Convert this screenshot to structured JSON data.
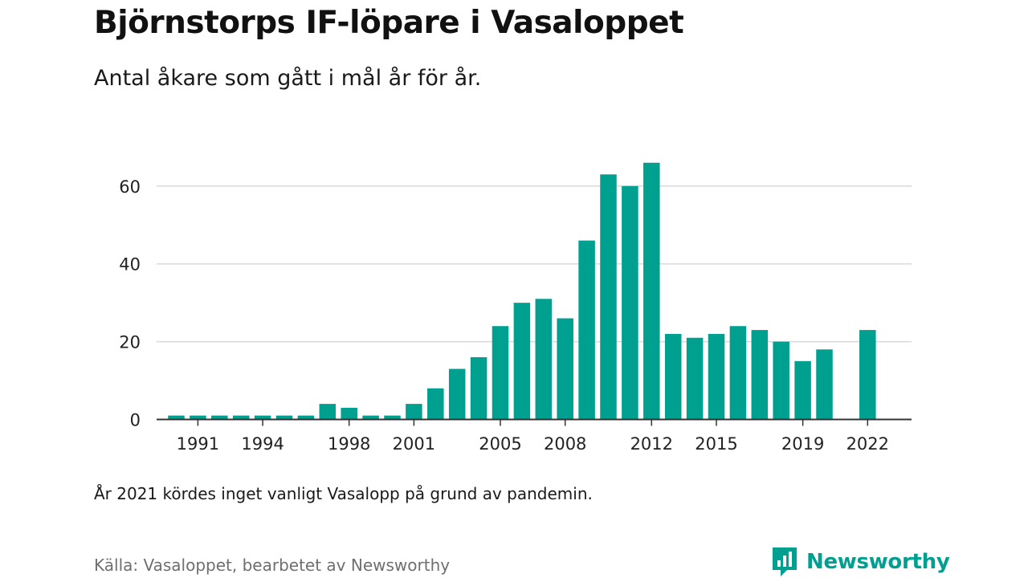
{
  "header": {
    "title": "Björnstorps IF-löpare i Vasaloppet",
    "subtitle": "Antal åkare som gått i mål år för år."
  },
  "chart_data": {
    "type": "bar",
    "x": [
      1990,
      1991,
      1992,
      1993,
      1994,
      1995,
      1996,
      1997,
      1998,
      1999,
      2000,
      2001,
      2002,
      2003,
      2004,
      2005,
      2006,
      2007,
      2008,
      2009,
      2010,
      2011,
      2012,
      2013,
      2014,
      2015,
      2016,
      2017,
      2018,
      2019,
      2020,
      2021,
      2022
    ],
    "values": [
      1,
      1,
      1,
      1,
      1,
      1,
      1,
      4,
      3,
      1,
      1,
      4,
      8,
      13,
      16,
      24,
      30,
      31,
      26,
      46,
      63,
      60,
      66,
      22,
      21,
      22,
      24,
      23,
      20,
      15,
      18,
      null,
      23
    ],
    "x_ticks": [
      "1991",
      "1994",
      "1998",
      "2001",
      "2005",
      "2008",
      "2012",
      "2015",
      "2019",
      "2022"
    ],
    "y_ticks": [
      "0",
      "20",
      "40",
      "60"
    ],
    "ylim": [
      0,
      66
    ],
    "grid": true,
    "bar_color": "#00a091",
    "xlabel": "",
    "ylabel": ""
  },
  "footer": {
    "note": "År 2021 kördes inget vanligt Vasalopp på grund av pandemin.",
    "source": "Källa: Vasaloppet, bearbetet av Newsworthy",
    "brand": "Newsworthy",
    "brand_icon": "newsworthy-logo-icon"
  },
  "colors": {
    "accent": "#00a091",
    "grid": "#d9d9d9",
    "axis": "#333333",
    "source_text": "#6f6f6f"
  }
}
